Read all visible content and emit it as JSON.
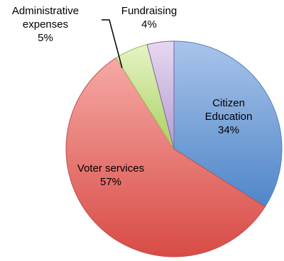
{
  "chart_data": {
    "type": "pie",
    "slices": [
      {
        "label_lines": [
          "Citizen",
          "Education"
        ],
        "percent_label": "34%",
        "value": 34,
        "color_top": "#a9c4ea",
        "color_bottom": "#4f86c9",
        "stroke": "#4f81bd"
      },
      {
        "label_lines": [
          "Voter services"
        ],
        "percent_label": "57%",
        "value": 57,
        "color_top": "#f6a9a5",
        "color_bottom": "#d84b45",
        "stroke": "#c0504d"
      },
      {
        "label_lines": [
          "Administrative",
          "expenses"
        ],
        "percent_label": "5%",
        "value": 5,
        "color_top": "#e6f3c6",
        "color_bottom": "#a9d160",
        "stroke": "#9bbb59"
      },
      {
        "label_lines": [
          "Fundraising"
        ],
        "percent_label": "4%",
        "value": 4,
        "color_top": "#e6d8f0",
        "color_bottom": "#b49cd0",
        "stroke": "#8064a2"
      }
    ],
    "legend": "none"
  }
}
